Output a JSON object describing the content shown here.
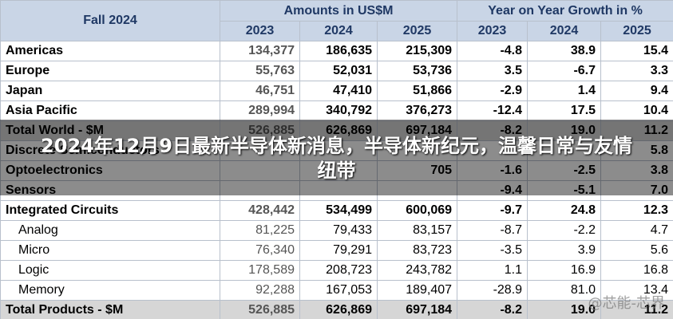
{
  "header": {
    "title": "Fall 2024",
    "amounts_label": "Amounts in US$M",
    "growth_label": "Year on Year Growth in %",
    "years": [
      "2023",
      "2024",
      "2025",
      "2023",
      "2024",
      "2025"
    ]
  },
  "rows": [
    {
      "label": "Americas",
      "cells": [
        "134,377",
        "186,635",
        "215,309",
        "-4.8",
        "38.9",
        "15.4"
      ]
    },
    {
      "label": "Europe",
      "cells": [
        "55,763",
        "52,031",
        "53,736",
        "3.5",
        "-6.7",
        "3.3"
      ]
    },
    {
      "label": "Japan",
      "cells": [
        "46,751",
        "47,410",
        "51,866",
        "-2.9",
        "1.4",
        "9.4"
      ]
    },
    {
      "label": "Asia Pacific",
      "cells": [
        "289,994",
        "340,792",
        "376,273",
        "-12.4",
        "17.5",
        "10.4"
      ]
    },
    {
      "label": "Total World - $M",
      "cells": [
        "526,885",
        "626,869",
        "697,184",
        "-8.2",
        "19.0",
        "11.2"
      ]
    },
    {
      "label": "Discrete Semiconductors",
      "cells": [
        null,
        null,
        null,
        null,
        null,
        "5.8"
      ]
    },
    {
      "label": "Optoelectronics",
      "cells": [
        null,
        null,
        "705",
        "-1.6",
        "-2.5",
        "3.8"
      ]
    },
    {
      "label": "Sensors",
      "cells": [
        null,
        null,
        null,
        "-9.4",
        "-5.1",
        "7.0"
      ]
    },
    {
      "label": "Integrated Circuits",
      "cells": [
        "428,442",
        "534,499",
        "600,069",
        "-9.7",
        "24.8",
        "12.3"
      ]
    },
    {
      "label": "Analog",
      "cells": [
        "81,225",
        "79,433",
        "83,157",
        "-8.7",
        "-2.2",
        "4.7"
      ]
    },
    {
      "label": "Micro",
      "cells": [
        "76,340",
        "79,291",
        "83,723",
        "-3.5",
        "3.9",
        "5.6"
      ]
    },
    {
      "label": "Logic",
      "cells": [
        "178,589",
        "208,723",
        "243,782",
        "1.1",
        "16.9",
        "16.8"
      ]
    },
    {
      "label": "Memory",
      "cells": [
        "92,288",
        "167,053",
        "189,407",
        "-28.9",
        "81.0",
        "13.4"
      ]
    },
    {
      "label": "Total Products - $M",
      "cells": [
        "526,885",
        "626,869",
        "697,184",
        "-8.2",
        "19.0",
        "11.2"
      ]
    }
  ],
  "overlay_title": "2024年12月9日最新半导体新消息，半导体新纪元，温馨日常与友情纽带",
  "watermark": "@芯能-芯界"
}
